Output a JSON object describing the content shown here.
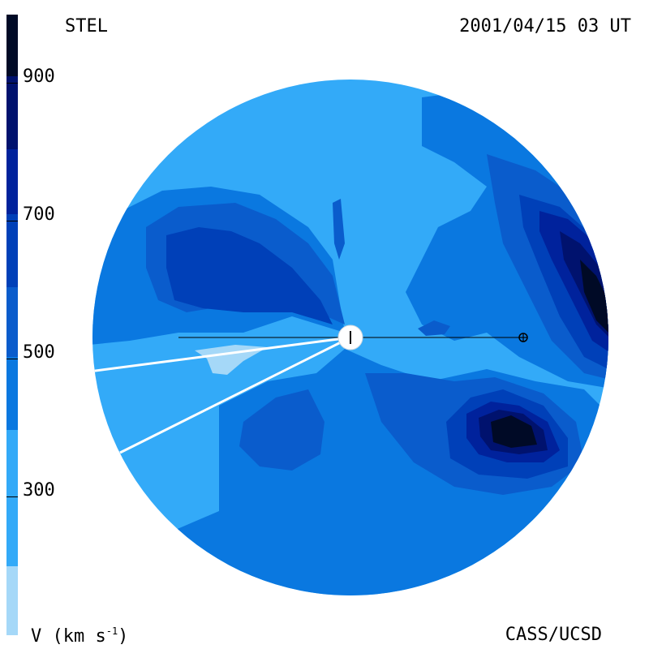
{
  "header": {
    "station": "STEL",
    "timestamp": "2001/04/15 03 UT"
  },
  "footer": {
    "units_main": "V (km s",
    "units_exp": "-1",
    "units_close": ")",
    "credit": "CASS/UCSD"
  },
  "colorbar": {
    "title": "V (km s-1)",
    "range": [
      200,
      1000
    ],
    "tick_labels": [
      "900",
      "700",
      "500",
      "300"
    ],
    "tick_values": [
      900,
      700,
      500,
      300
    ],
    "levels": [
      {
        "from": 200,
        "to": 300,
        "color": "#a5d8f8"
      },
      {
        "from": 300,
        "to": 400,
        "color": "#33aaf8"
      },
      {
        "from": 400,
        "to": 500,
        "color": "#0a78e0"
      },
      {
        "from": 500,
        "to": 600,
        "color": "#0a5ccc"
      },
      {
        "from": 600,
        "to": 700,
        "color": "#0040b8"
      },
      {
        "from": 700,
        "to": 800,
        "color": "#00229c"
      },
      {
        "from": 800,
        "to": 900,
        "color": "#00126e"
      },
      {
        "from": 900,
        "to": 1000,
        "color": "#000a26"
      }
    ]
  },
  "markers": {
    "sun_symbol": "sun-icon",
    "earth_symbol": "earth-icon"
  }
}
